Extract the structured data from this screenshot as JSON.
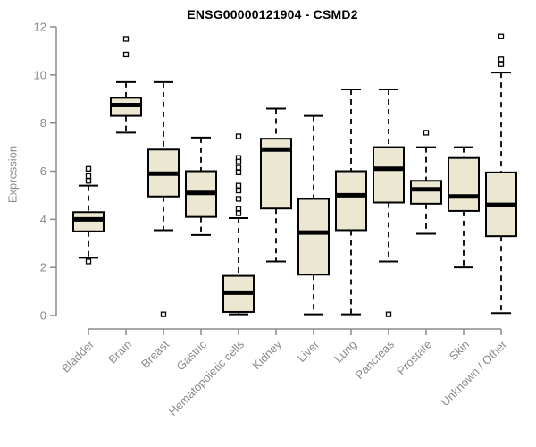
{
  "colors": {
    "box_fill": "#ECE7D0",
    "box_border": "#000000",
    "median": "#000000",
    "whisker": "#000000",
    "outlier_stroke": "#000000",
    "outlier_fill": "#FFFFFF",
    "axis": "#8B8B8B",
    "tick_label": "#8B8B8B",
    "title": "#000000",
    "background": "#FFFFFF"
  },
  "chart_data": {
    "type": "boxplot",
    "title": "ENSG00000121904 - CSMD2",
    "xlabel": "",
    "ylabel": "Expression",
    "ylim": [
      0,
      12
    ],
    "yticks": [
      0,
      2,
      4,
      6,
      8,
      10,
      12
    ],
    "grid": false,
    "legend": "none",
    "categories": [
      "Bladder",
      "Brain",
      "Breast",
      "Gastric",
      "Hematopoietic cells",
      "Kidney",
      "Liver",
      "Lung",
      "Pancreas",
      "Prostate",
      "Skin",
      "Unknown / Other"
    ],
    "series": [
      {
        "category": "Bladder",
        "whisker_low": 2.4,
        "q1": 3.5,
        "median": 4.0,
        "q3": 4.3,
        "whisker_high": 5.4,
        "outliers": [
          6.1,
          5.8,
          5.6,
          2.25
        ]
      },
      {
        "category": "Brain",
        "whisker_low": 7.6,
        "q1": 8.3,
        "median": 8.75,
        "q3": 9.05,
        "whisker_high": 9.7,
        "outliers": [
          11.5,
          10.85
        ]
      },
      {
        "category": "Breast",
        "whisker_low": 3.55,
        "q1": 4.95,
        "median": 5.9,
        "q3": 6.9,
        "whisker_high": 9.7,
        "outliers": [
          0.05
        ]
      },
      {
        "category": "Gastric",
        "whisker_low": 3.35,
        "q1": 4.1,
        "median": 5.1,
        "q3": 6.0,
        "whisker_high": 7.4,
        "outliers": []
      },
      {
        "category": "Hematopoietic cells",
        "whisker_low": 0.05,
        "q1": 0.15,
        "median": 0.95,
        "q3": 1.65,
        "whisker_high": 4.05,
        "outliers": [
          7.45,
          6.55,
          6.4,
          6.15,
          5.95,
          5.4,
          5.2,
          4.85,
          4.45,
          4.25
        ]
      },
      {
        "category": "Kidney",
        "whisker_low": 2.25,
        "q1": 4.45,
        "median": 6.9,
        "q3": 7.35,
        "whisker_high": 8.6,
        "outliers": []
      },
      {
        "category": "Liver",
        "whisker_low": 0.05,
        "q1": 1.7,
        "median": 3.45,
        "q3": 4.85,
        "whisker_high": 8.3,
        "outliers": []
      },
      {
        "category": "Lung",
        "whisker_low": 0.05,
        "q1": 3.55,
        "median": 5.0,
        "q3": 6.0,
        "whisker_high": 9.4,
        "outliers": []
      },
      {
        "category": "Pancreas",
        "whisker_low": 2.25,
        "q1": 4.7,
        "median": 6.1,
        "q3": 7.0,
        "whisker_high": 9.4,
        "outliers": [
          0.05
        ]
      },
      {
        "category": "Prostate",
        "whisker_low": 3.4,
        "q1": 4.65,
        "median": 5.25,
        "q3": 5.6,
        "whisker_high": 7.0,
        "outliers": [
          7.6
        ]
      },
      {
        "category": "Skin",
        "whisker_low": 2.0,
        "q1": 4.35,
        "median": 4.95,
        "q3": 6.55,
        "whisker_high": 7.0,
        "outliers": []
      },
      {
        "category": "Unknown / Other",
        "whisker_low": 0.1,
        "q1": 3.3,
        "median": 4.6,
        "q3": 5.95,
        "whisker_high": 10.1,
        "outliers": [
          11.6,
          10.65,
          10.45
        ]
      }
    ]
  }
}
